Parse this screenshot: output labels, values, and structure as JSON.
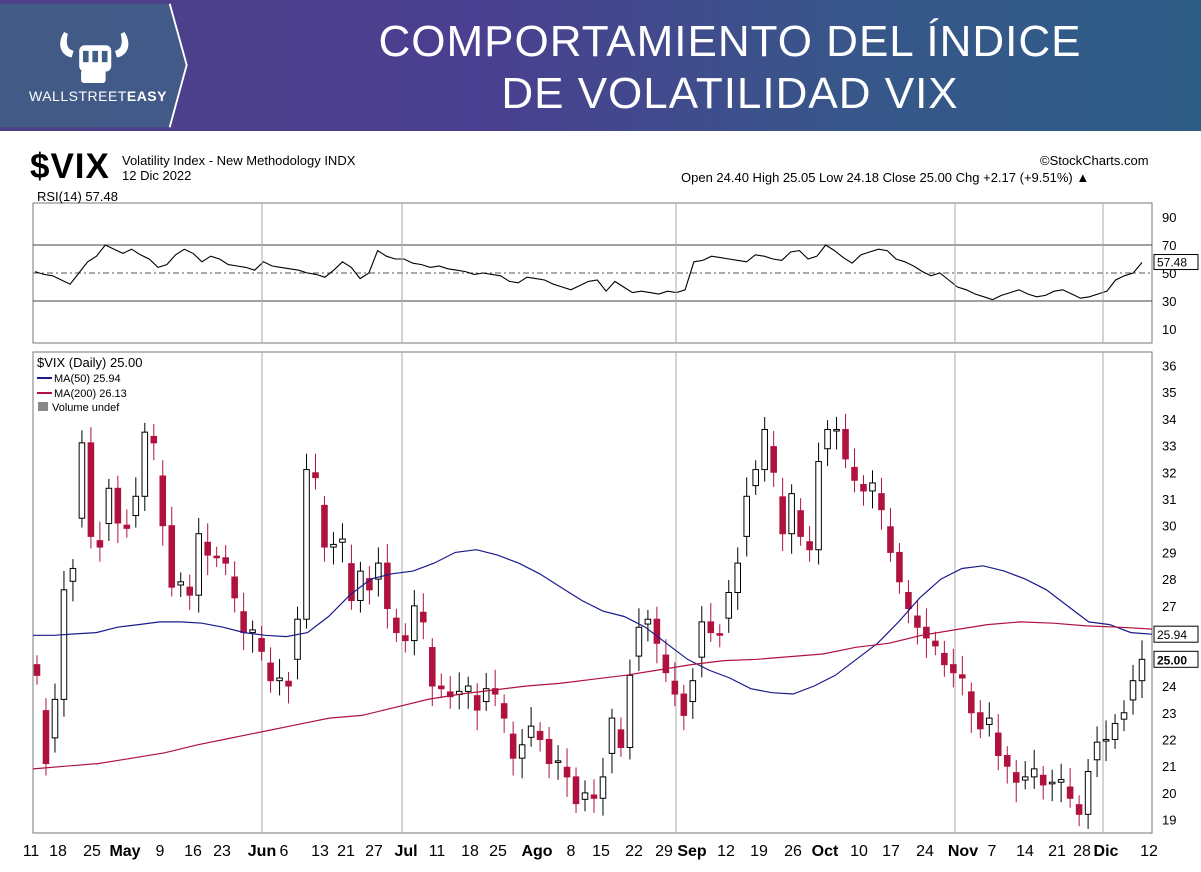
{
  "banner": {
    "title_line1": "COMPORTAMIENTO DEL ÍNDICE",
    "title_line2": "DE VOLATILIDAD VIX",
    "brand_light": "WALLSTREET",
    "brand_bold": "EASY"
  },
  "header": {
    "symbol": "$VIX",
    "description": "Volatility Index - New Methodology  INDX",
    "date": "12 Dic 2022",
    "source": "©StockCharts.com",
    "ohlc": "Open 24.40  High 25.05  Low 24.18  Close 25.00  Chg +2.17 (+9.51%) ▲"
  },
  "colors": {
    "up": "#ffffff",
    "down": "#b0123f",
    "ma50": "#1a1a8c",
    "ma200": "#b0123f",
    "rsi": "#000000"
  },
  "chart_data": [
    {
      "type": "line",
      "title": "RSI(14) 57.48",
      "ylim": [
        0,
        100
      ],
      "ticks": [
        10,
        30,
        50,
        70,
        90
      ],
      "reference_lines": [
        30,
        70
      ],
      "last_value": "57.48",
      "values": [
        51,
        49,
        48,
        45,
        42,
        50,
        58,
        62,
        70,
        67,
        64,
        67,
        63,
        60,
        54,
        56,
        63,
        67,
        64,
        58,
        62,
        60,
        56,
        55,
        54,
        52,
        58,
        55,
        54,
        53,
        52,
        50,
        49,
        47,
        52,
        58,
        54,
        46,
        50,
        66,
        62,
        60,
        60,
        57,
        56,
        54,
        55,
        53,
        52,
        51,
        49,
        50,
        49,
        48,
        44,
        43,
        47,
        46,
        45,
        42,
        40,
        38,
        41,
        44,
        45,
        37,
        44,
        40,
        36,
        37,
        36,
        35,
        37,
        36,
        38,
        58,
        59,
        62,
        61,
        60,
        59,
        58,
        63,
        62,
        60,
        59,
        65,
        66,
        60,
        62,
        70,
        66,
        61,
        57,
        63,
        65,
        67,
        66,
        60,
        58,
        55,
        51,
        48,
        50,
        45,
        40,
        38,
        35,
        33,
        31,
        34,
        36,
        38,
        35,
        33,
        34,
        37,
        38,
        35,
        32,
        33,
        35,
        37,
        45,
        48,
        50,
        57.48
      ]
    },
    {
      "type": "candlestick",
      "title": "$VIX (Daily) 25.00",
      "ylim": [
        18.5,
        36.5
      ],
      "ticks": [
        19,
        20,
        21,
        22,
        23,
        24,
        25,
        26,
        27,
        28,
        29,
        30,
        31,
        32,
        33,
        34,
        35,
        36
      ],
      "x_labels": [
        "11",
        "18",
        "25",
        "May",
        "9",
        "16",
        "23",
        "Jun",
        "6",
        "13",
        "21",
        "27",
        "Jul",
        "11",
        "18",
        "25",
        "Ago",
        "8",
        "15",
        "22",
        "29",
        "Sep",
        "12",
        "19",
        "26",
        "Oct",
        "10",
        "17",
        "24",
        "Nov",
        "7",
        "14",
        "21",
        "28",
        "Dic",
        "12"
      ],
      "close_values": [
        24.4,
        21.1,
        23.5,
        27.6,
        28.4,
        33.1,
        29.6,
        29.2,
        31.4,
        30.1,
        29.9,
        31.1,
        33.5,
        33.1,
        30.0,
        27.7,
        27.9,
        27.4,
        29.7,
        28.9,
        28.8,
        28.6,
        27.3,
        26.0,
        26.1,
        25.3,
        24.2,
        24.3,
        24.0,
        26.5,
        32.1,
        31.8,
        29.2,
        29.3,
        29.5,
        27.2,
        28.3,
        27.6,
        28.6,
        26.9,
        26.0,
        25.7,
        27.0,
        26.4,
        24.0,
        23.9,
        23.6,
        23.8,
        24.0,
        23.1,
        23.9,
        23.7,
        22.8,
        21.3,
        21.8,
        22.5,
        22.0,
        21.1,
        21.2,
        20.6,
        19.6,
        20.0,
        19.8,
        20.6,
        22.8,
        21.7,
        24.4,
        26.2,
        26.5,
        25.6,
        24.5,
        23.7,
        22.9,
        24.2,
        26.4,
        26.0,
        25.9,
        27.5,
        28.6,
        31.1,
        32.1,
        33.6,
        32.0,
        29.7,
        31.2,
        29.6,
        29.1,
        32.4,
        33.6,
        33.6,
        32.5,
        31.7,
        31.3,
        31.6,
        30.6,
        29.0,
        27.9,
        26.9,
        26.2,
        25.8,
        25.5,
        24.8,
        24.5,
        24.3,
        23.0,
        22.4,
        22.8,
        21.4,
        21.0,
        20.4,
        20.6,
        20.9,
        20.3,
        20.4,
        20.5,
        19.8,
        19.2,
        20.8,
        21.9,
        22.0,
        22.6,
        23.0,
        24.2,
        25.0
      ],
      "series": [
        {
          "name": "MA(50) 25.94",
          "last": "25.94",
          "values": [
            25.9,
            25.9,
            25.95,
            26.0,
            26.2,
            26.3,
            26.4,
            26.4,
            26.35,
            26.2,
            26.0,
            25.9,
            25.85,
            26.0,
            26.6,
            27.4,
            28.0,
            28.2,
            28.3,
            28.6,
            29.0,
            29.1,
            28.9,
            28.6,
            28.2,
            27.7,
            27.2,
            26.8,
            26.6,
            26.2,
            25.6,
            25.0,
            24.6,
            24.3,
            23.9,
            23.75,
            23.7,
            24.0,
            24.4,
            25.0,
            25.6,
            26.4,
            27.3,
            28.0,
            28.4,
            28.5,
            28.3,
            28.0,
            27.6,
            27.0,
            26.4,
            26.3,
            26.0,
            25.94
          ]
        },
        {
          "name": "MA(200) 26.13",
          "last": "26.13",
          "values": [
            20.9,
            21.0,
            21.1,
            21.3,
            21.5,
            21.8,
            22.05,
            22.3,
            22.55,
            22.8,
            22.9,
            23.2,
            23.5,
            23.7,
            23.85,
            24.0,
            24.1,
            24.25,
            24.4,
            24.6,
            24.8,
            24.95,
            25.0,
            25.1,
            25.2,
            25.45,
            25.6,
            25.9,
            26.1,
            26.3,
            26.4,
            26.35,
            26.25,
            26.2,
            26.13
          ]
        }
      ],
      "extra_legend": "Volume undef"
    }
  ]
}
